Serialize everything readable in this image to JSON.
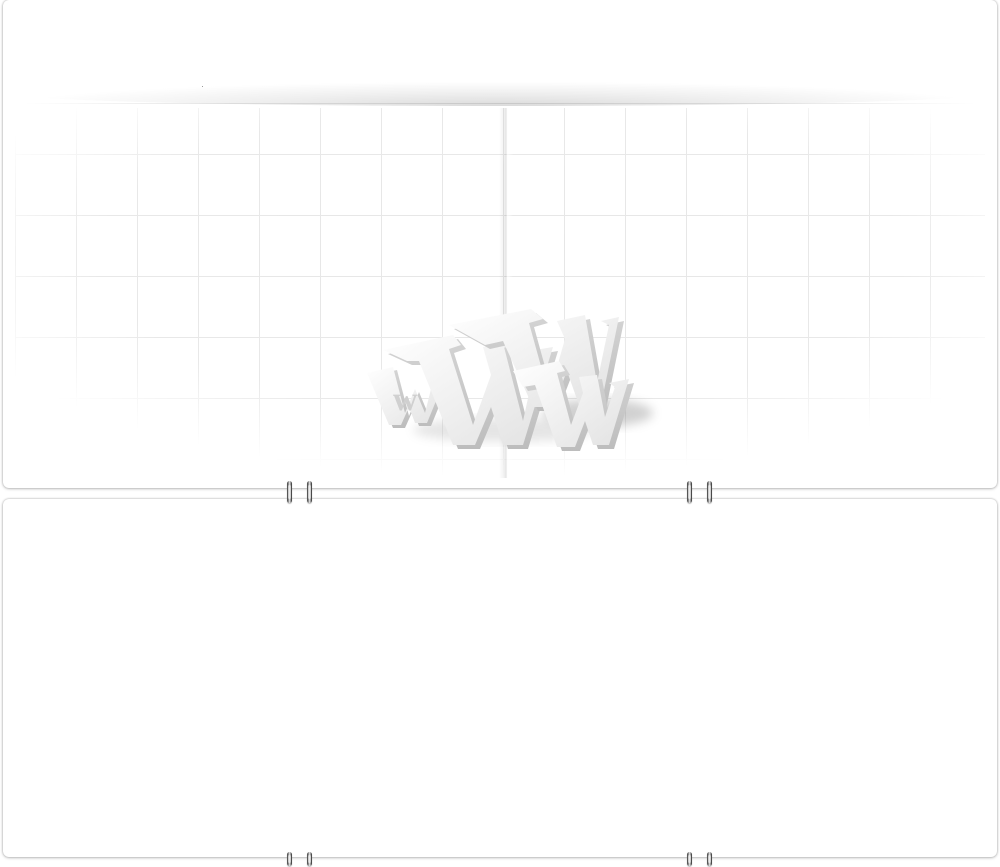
{
  "page": {
    "background": "#ffffff"
  },
  "top_card": {
    "grid_color": "#e6e6e6",
    "grid_fade_color": "#ffffff"
  },
  "decoration": {
    "graphic": "3d-www-letters",
    "letters": [
      "w",
      "W",
      "W",
      "w"
    ]
  },
  "colors": {
    "card": "#ffffff",
    "shadow": "#000000",
    "ring_dark": "#2a2a2a",
    "ring_light": "#e9e9e9"
  }
}
